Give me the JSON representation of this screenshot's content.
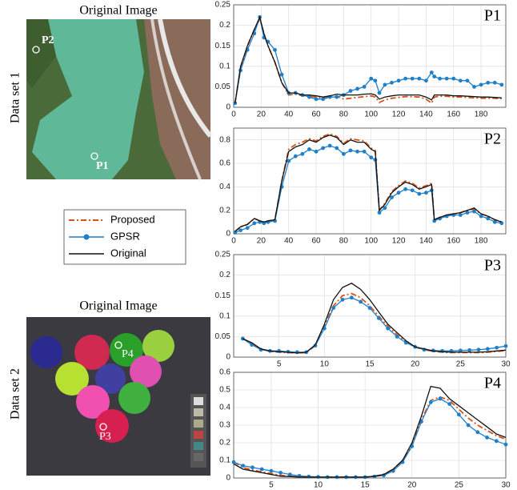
{
  "panels": [
    {
      "title": "Original Image",
      "side_label": "Data set 1",
      "points": [
        "P2",
        "P1"
      ]
    },
    {
      "title": "Original Image",
      "side_label": "Data set 2",
      "points": [
        "P4",
        "P3"
      ]
    }
  ],
  "chart_data": [
    {
      "type": "line",
      "title": "P1",
      "grid": true,
      "x": [
        1,
        5,
        10,
        15,
        19,
        22,
        25,
        30,
        35,
        40,
        45,
        50,
        55,
        60,
        65,
        70,
        75,
        80,
        85,
        90,
        95,
        100,
        103,
        106,
        110,
        115,
        120,
        125,
        130,
        135,
        140,
        144,
        146,
        150,
        155,
        160,
        165,
        170,
        175,
        180,
        185,
        190,
        195
      ],
      "xlim": [
        0,
        198
      ],
      "xticks": [
        0,
        20,
        40,
        60,
        80,
        100,
        120,
        140,
        160,
        180
      ],
      "ylim": [
        0,
        0.25
      ],
      "yticks": [
        0,
        0.05,
        0.1,
        0.15,
        0.2,
        0.25
      ],
      "series": [
        {
          "name": "Proposed",
          "color": "#d95319",
          "line_style": "dash-dot",
          "values": [
            0.01,
            0.095,
            0.15,
            0.19,
            0.215,
            0.18,
            0.15,
            0.11,
            0.06,
            0.03,
            0.032,
            0.028,
            0.027,
            0.025,
            0.022,
            0.025,
            0.027,
            0.02,
            0.022,
            0.024,
            0.026,
            0.028,
            0.025,
            0.012,
            0.018,
            0.022,
            0.024,
            0.026,
            0.026,
            0.025,
            0.02,
            0.01,
            0.025,
            0.027,
            0.027,
            0.025,
            0.025,
            0.024,
            0.023,
            0.022,
            0.022,
            0.022,
            0.021
          ]
        },
        {
          "name": "GPSR",
          "color": "#1f7fc8",
          "line_style": "solid",
          "marker": "circle",
          "values": [
            0.01,
            0.09,
            0.14,
            0.18,
            0.22,
            0.17,
            0.16,
            0.14,
            0.08,
            0.035,
            0.035,
            0.03,
            0.025,
            0.02,
            0.02,
            0.025,
            0.025,
            0.03,
            0.04,
            0.045,
            0.05,
            0.07,
            0.065,
            0.035,
            0.055,
            0.06,
            0.065,
            0.07,
            0.07,
            0.07,
            0.065,
            0.085,
            0.075,
            0.07,
            0.07,
            0.07,
            0.065,
            0.065,
            0.05,
            0.055,
            0.06,
            0.06,
            0.055
          ]
        },
        {
          "name": "Original",
          "color": "#111111",
          "line_style": "solid",
          "values": [
            0.01,
            0.1,
            0.15,
            0.19,
            0.22,
            0.18,
            0.15,
            0.11,
            0.06,
            0.035,
            0.035,
            0.03,
            0.03,
            0.028,
            0.025,
            0.028,
            0.032,
            0.03,
            0.03,
            0.03,
            0.032,
            0.033,
            0.03,
            0.02,
            0.025,
            0.028,
            0.03,
            0.03,
            0.03,
            0.03,
            0.025,
            0.018,
            0.03,
            0.03,
            0.03,
            0.028,
            0.028,
            0.027,
            0.026,
            0.025,
            0.025,
            0.024,
            0.023
          ]
        }
      ]
    },
    {
      "type": "line",
      "title": "P2",
      "grid": true,
      "x": [
        1,
        5,
        10,
        15,
        19,
        22,
        25,
        30,
        35,
        40,
        45,
        50,
        55,
        60,
        65,
        70,
        75,
        80,
        85,
        90,
        95,
        100,
        103,
        106,
        110,
        115,
        120,
        125,
        130,
        135,
        140,
        144,
        146,
        150,
        155,
        160,
        165,
        170,
        175,
        180,
        185,
        190,
        195
      ],
      "xlim": [
        0,
        198
      ],
      "xticks": [
        0,
        20,
        40,
        60,
        80,
        100,
        120,
        140,
        160,
        180
      ],
      "ylim": [
        0,
        0.9
      ],
      "yticks": [
        0,
        0.2,
        0.4,
        0.6,
        0.8
      ],
      "series": [
        {
          "name": "Proposed",
          "color": "#d95319",
          "line_style": "dash-dot",
          "values": [
            0.02,
            0.06,
            0.08,
            0.13,
            0.11,
            0.1,
            0.11,
            0.12,
            0.45,
            0.72,
            0.76,
            0.78,
            0.81,
            0.79,
            0.83,
            0.85,
            0.83,
            0.77,
            0.81,
            0.8,
            0.79,
            0.73,
            0.71,
            0.2,
            0.26,
            0.36,
            0.41,
            0.45,
            0.43,
            0.39,
            0.41,
            0.43,
            0.12,
            0.14,
            0.16,
            0.17,
            0.18,
            0.2,
            0.21,
            0.17,
            0.15,
            0.12,
            0.1
          ]
        },
        {
          "name": "GPSR",
          "color": "#1f7fc8",
          "line_style": "solid",
          "marker": "circle",
          "values": [
            0.01,
            0.03,
            0.05,
            0.09,
            0.1,
            0.09,
            0.1,
            0.11,
            0.4,
            0.62,
            0.66,
            0.68,
            0.72,
            0.7,
            0.73,
            0.75,
            0.73,
            0.68,
            0.71,
            0.7,
            0.7,
            0.65,
            0.63,
            0.18,
            0.22,
            0.31,
            0.35,
            0.38,
            0.37,
            0.34,
            0.35,
            0.37,
            0.11,
            0.13,
            0.15,
            0.16,
            0.16,
            0.18,
            0.19,
            0.15,
            0.13,
            0.1,
            0.09
          ]
        },
        {
          "name": "Original",
          "color": "#111111",
          "line_style": "solid",
          "values": [
            0.02,
            0.06,
            0.08,
            0.13,
            0.11,
            0.1,
            0.11,
            0.12,
            0.45,
            0.7,
            0.74,
            0.76,
            0.8,
            0.78,
            0.82,
            0.84,
            0.82,
            0.76,
            0.8,
            0.78,
            0.78,
            0.72,
            0.7,
            0.2,
            0.25,
            0.35,
            0.4,
            0.44,
            0.42,
            0.38,
            0.4,
            0.42,
            0.12,
            0.14,
            0.16,
            0.17,
            0.18,
            0.2,
            0.22,
            0.17,
            0.15,
            0.12,
            0.1
          ]
        }
      ]
    },
    {
      "type": "line",
      "title": "P3",
      "grid": true,
      "x": [
        1,
        2,
        3,
        4,
        5,
        6,
        7,
        8,
        9,
        10,
        11,
        12,
        13,
        14,
        15,
        16,
        17,
        18,
        19,
        20,
        21,
        22,
        23,
        24,
        25,
        26,
        27,
        28,
        29,
        30
      ],
      "xlim": [
        0,
        30
      ],
      "xticks": [
        5,
        10,
        15,
        20,
        25,
        30
      ],
      "ylim": [
        0,
        0.25
      ],
      "yticks": [
        0,
        0.05,
        0.1,
        0.15,
        0.2,
        0.25
      ],
      "series": [
        {
          "name": "Proposed",
          "color": "#d95319",
          "line_style": "dash-dot",
          "values": [
            0.045,
            0.033,
            0.02,
            0.014,
            0.012,
            0.011,
            0.01,
            0.011,
            0.028,
            0.075,
            0.125,
            0.15,
            0.155,
            0.145,
            0.125,
            0.1,
            0.075,
            0.055,
            0.037,
            0.024,
            0.018,
            0.014,
            0.012,
            0.011,
            0.011,
            0.011,
            0.011,
            0.012,
            0.014,
            0.016
          ]
        },
        {
          "name": "GPSR",
          "color": "#1f7fc8",
          "line_style": "solid",
          "marker": "circle",
          "values": [
            0.045,
            0.03,
            0.018,
            0.015,
            0.015,
            0.013,
            0.012,
            0.012,
            0.028,
            0.07,
            0.12,
            0.14,
            0.145,
            0.135,
            0.12,
            0.095,
            0.07,
            0.05,
            0.035,
            0.025,
            0.018,
            0.016,
            0.015,
            0.015,
            0.016,
            0.017,
            0.018,
            0.02,
            0.023,
            0.027
          ]
        },
        {
          "name": "Original",
          "color": "#111111",
          "line_style": "solid",
          "values": [
            0.045,
            0.035,
            0.02,
            0.015,
            0.013,
            0.012,
            0.01,
            0.012,
            0.03,
            0.08,
            0.14,
            0.17,
            0.18,
            0.165,
            0.14,
            0.11,
            0.08,
            0.06,
            0.04,
            0.025,
            0.02,
            0.015,
            0.013,
            0.012,
            0.012,
            0.012,
            0.012,
            0.013,
            0.015,
            0.017
          ]
        }
      ]
    },
    {
      "type": "line",
      "title": "P4",
      "grid": true,
      "x": [
        1,
        2,
        3,
        4,
        5,
        6,
        7,
        8,
        9,
        10,
        11,
        12,
        13,
        14,
        15,
        16,
        17,
        18,
        19,
        20,
        21,
        22,
        23,
        24,
        25,
        26,
        27,
        28,
        29,
        30
      ],
      "xlim": [
        1,
        30
      ],
      "xticks": [
        5,
        10,
        15,
        20,
        25,
        30
      ],
      "ylim": [
        0,
        0.6
      ],
      "yticks": [
        0,
        0.1,
        0.2,
        0.3,
        0.4,
        0.5,
        0.6
      ],
      "series": [
        {
          "name": "Proposed",
          "color": "#d95319",
          "line_style": "dash-dot",
          "values": [
            0.09,
            0.06,
            0.045,
            0.035,
            0.025,
            0.015,
            0.01,
            0.006,
            0.005,
            0.005,
            0.005,
            0.005,
            0.005,
            0.005,
            0.005,
            0.01,
            0.02,
            0.05,
            0.1,
            0.19,
            0.33,
            0.44,
            0.46,
            0.44,
            0.39,
            0.34,
            0.3,
            0.27,
            0.24,
            0.22
          ]
        },
        {
          "name": "GPSR",
          "color": "#1f7fc8",
          "line_style": "solid",
          "marker": "circle",
          "values": [
            0.09,
            0.07,
            0.06,
            0.05,
            0.04,
            0.03,
            0.02,
            0.012,
            0.008,
            0.006,
            0.005,
            0.005,
            0.005,
            0.005,
            0.005,
            0.008,
            0.015,
            0.04,
            0.09,
            0.18,
            0.32,
            0.43,
            0.45,
            0.42,
            0.36,
            0.3,
            0.26,
            0.23,
            0.21,
            0.19
          ]
        },
        {
          "name": "Original",
          "color": "#111111",
          "line_style": "solid",
          "values": [
            0.08,
            0.05,
            0.04,
            0.03,
            0.02,
            0.01,
            0.008,
            0.005,
            0.005,
            0.005,
            0.005,
            0.005,
            0.005,
            0.005,
            0.005,
            0.01,
            0.02,
            0.05,
            0.1,
            0.2,
            0.35,
            0.52,
            0.51,
            0.45,
            0.41,
            0.37,
            0.33,
            0.29,
            0.25,
            0.23
          ]
        }
      ]
    }
  ]
}
